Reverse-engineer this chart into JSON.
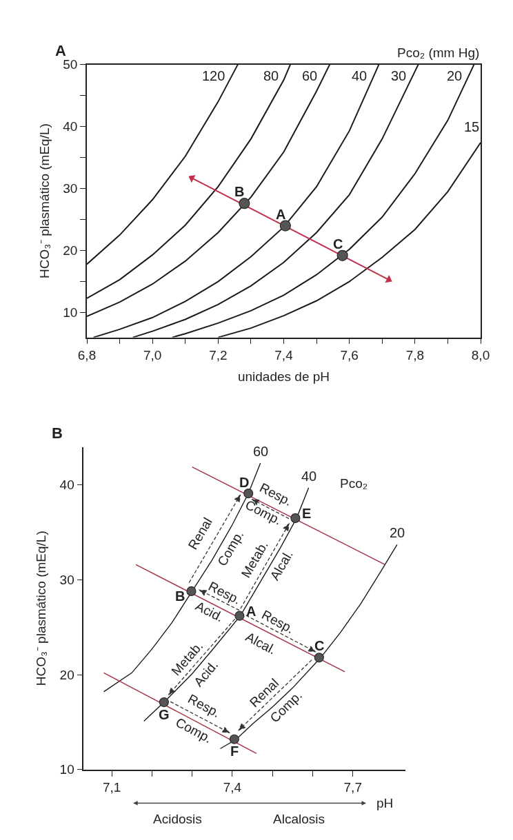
{
  "chart_data": [
    {
      "type": "line",
      "title": "A",
      "xlabel": "unidades de pH",
      "ylabel": "HCO₃⁻ plasmático (mEq/L)",
      "legend_title": "Pco₂ (mm Hg)",
      "xlim": [
        6.8,
        8.0
      ],
      "ylim": [
        6,
        50
      ],
      "xticks": [
        {
          "value": 6.8,
          "label": "6,8"
        },
        {
          "value": 6.9,
          "label": null
        },
        {
          "value": 7.0,
          "label": "7,0"
        },
        {
          "value": 7.1,
          "label": null
        },
        {
          "value": 7.2,
          "label": "7,2"
        },
        {
          "value": 7.3,
          "label": null
        },
        {
          "value": 7.4,
          "label": "7,4"
        },
        {
          "value": 7.5,
          "label": null
        },
        {
          "value": 7.6,
          "label": "7,6"
        },
        {
          "value": 7.7,
          "label": null
        },
        {
          "value": 7.8,
          "label": "7,8"
        },
        {
          "value": 7.9,
          "label": null
        },
        {
          "value": 8.0,
          "label": "8,0"
        }
      ],
      "yticks": [
        10,
        {
          "value": 15,
          "label": null
        },
        20,
        {
          "value": 25,
          "label": null
        },
        30,
        {
          "value": 35,
          "label": null
        },
        40,
        {
          "value": 45,
          "label": null
        },
        50
      ],
      "series": [
        {
          "name": "120",
          "color": "#1a1a1a",
          "x": [
            6.8,
            6.9,
            7.0,
            7.1,
            7.2,
            7.26
          ],
          "values": [
            17.8,
            22.5,
            28.2,
            35.2,
            44.0,
            50
          ]
        },
        {
          "name": "80",
          "color": "#1a1a1a",
          "x": [
            6.8,
            6.9,
            7.0,
            7.1,
            7.2,
            7.3,
            7.4,
            7.42
          ],
          "values": [
            12.3,
            15.3,
            19.3,
            24.1,
            30.3,
            38.0,
            47.5,
            50
          ]
        },
        {
          "name": "60",
          "color": "#1a1a1a",
          "x": [
            6.8,
            6.9,
            7.0,
            7.1,
            7.2,
            7.3,
            7.4,
            7.5,
            7.54
          ],
          "values": [
            9.4,
            11.7,
            14.6,
            18.3,
            22.9,
            28.6,
            35.9,
            45.7,
            50
          ]
        },
        {
          "name": "40",
          "color": "#1a1a1a",
          "x": [
            6.82,
            6.9,
            7.0,
            7.1,
            7.2,
            7.3,
            7.4,
            7.5,
            7.6,
            7.69
          ],
          "values": [
            6.0,
            7.3,
            9.2,
            11.8,
            15.0,
            19.0,
            23.8,
            30.3,
            39.3,
            50
          ]
        },
        {
          "name": "30",
          "color": "#1a1a1a",
          "x": [
            6.94,
            7.0,
            7.1,
            7.2,
            7.3,
            7.4,
            7.5,
            7.6,
            7.7,
            7.81
          ],
          "values": [
            6.0,
            7.0,
            8.9,
            11.3,
            14.3,
            18.1,
            22.9,
            29.0,
            38.0,
            50
          ]
        },
        {
          "name": "20",
          "color": "#1a1a1a",
          "x": [
            7.06,
            7.1,
            7.2,
            7.3,
            7.4,
            7.5,
            7.6,
            7.7,
            7.8,
            7.9,
            7.98
          ],
          "values": [
            6.0,
            6.6,
            8.3,
            10.3,
            12.8,
            16.1,
            20.2,
            25.4,
            32.4,
            41.0,
            50
          ]
        },
        {
          "name": "15",
          "color": "#1a1a1a",
          "x": [
            7.2,
            7.3,
            7.4,
            7.5,
            7.6,
            7.7,
            7.8,
            7.9,
            8.0
          ],
          "values": [
            6.0,
            7.5,
            9.5,
            11.9,
            15.0,
            18.9,
            23.4,
            29.5,
            37.4
          ]
        },
        {
          "type": "line",
          "color": "#c0304a",
          "marker": "triangle",
          "x": [
            7.12,
            7.72
          ],
          "values": [
            31.7,
            15.3
          ]
        },
        {
          "type": "scatter",
          "color": "#555555",
          "marker": "circle",
          "x": [
            7.28,
            7.405,
            7.579
          ],
          "values": [
            27.6,
            24.0,
            19.2
          ]
        }
      ],
      "annotations": [
        {
          "text": "B",
          "x": 7.28,
          "y": 27.6
        },
        {
          "text": "A",
          "x": 7.405,
          "y": 24.0
        },
        {
          "text": "C",
          "x": 7.579,
          "y": 19.2
        }
      ]
    },
    {
      "type": "line",
      "title": "B",
      "xlabel": "pH",
      "ylabel": "HCO₃⁻ plasmático (mEq/L)",
      "legend_title": "Pco₂",
      "xlim": [
        7.03,
        7.83
      ],
      "ylim": [
        10,
        44
      ],
      "xticks": [
        {
          "value": 7.1,
          "label": "7,1"
        },
        {
          "value": 7.2,
          "label": null
        },
        {
          "value": 7.3,
          "label": null
        },
        {
          "value": 7.4,
          "label": "7,4"
        },
        {
          "value": 7.5,
          "label": null
        },
        {
          "value": 7.6,
          "label": null
        },
        {
          "value": 7.7,
          "label": "7,7"
        }
      ],
      "yticks": [
        10,
        20,
        30,
        40
      ],
      "series": [
        {
          "name": "60",
          "color": "#1a1a1a",
          "x": [
            7.08,
            7.15,
            7.2,
            7.25,
            7.3,
            7.35,
            7.4,
            7.44,
            7.47
          ],
          "values": [
            18.2,
            20.2,
            22.7,
            25.5,
            28.8,
            32.1,
            35.8,
            39.1,
            42.3
          ]
        },
        {
          "name": "40",
          "color": "#1a1a1a",
          "x": [
            7.18,
            7.23,
            7.3,
            7.35,
            7.42,
            7.47,
            7.52,
            7.56,
            7.59
          ],
          "values": [
            15.1,
            17.1,
            20.1,
            22.6,
            26.2,
            29.8,
            33.4,
            36.5,
            39.7
          ]
        },
        {
          "name": "20",
          "color": "#1a1a1a",
          "x": [
            7.37,
            7.41,
            7.45,
            7.5,
            7.55,
            7.62,
            7.67,
            7.72,
            7.77,
            7.81
          ],
          "values": [
            12.2,
            13.2,
            14.8,
            16.6,
            18.6,
            21.8,
            24.5,
            27.5,
            30.9,
            33.7
          ]
        },
        {
          "type": "line",
          "color": "#a3303f",
          "x": [
            7.3,
            7.78
          ],
          "values": [
            41.9,
            31.6
          ]
        },
        {
          "type": "line",
          "color": "#a3303f",
          "x": [
            7.16,
            7.68
          ],
          "values": [
            31.6,
            20.3
          ]
        },
        {
          "type": "line",
          "color": "#a3303f",
          "x": [
            7.08,
            7.46
          ],
          "values": [
            20.2,
            11.7
          ]
        },
        {
          "type": "scatter",
          "color": "#555555",
          "marker": "circle",
          "x": [
            7.44,
            7.557,
            7.298,
            7.418,
            7.616,
            7.23,
            7.405
          ],
          "values": [
            39.1,
            36.5,
            28.8,
            26.2,
            21.8,
            17.1,
            13.2
          ]
        }
      ],
      "annotations": [
        {
          "text": "D",
          "x": 7.44,
          "y": 39.1
        },
        {
          "text": "E",
          "x": 7.557,
          "y": 36.5
        },
        {
          "text": "B",
          "x": 7.298,
          "y": 28.8
        },
        {
          "text": "A",
          "x": 7.418,
          "y": 26.2
        },
        {
          "text": "C",
          "x": 7.616,
          "y": 21.8
        },
        {
          "text": "G",
          "x": 7.23,
          "y": 17.1
        },
        {
          "text": "F",
          "x": 7.405,
          "y": 13.2
        },
        "Resp.",
        "Comp.",
        "Renal",
        "Comp.",
        "Metab.",
        "Alcal.",
        "Resp.",
        "Acid.",
        "Resp.",
        "Alcal.",
        "Metab.",
        "Acid.",
        "Renal",
        "Comp.",
        "Resp.",
        "Comp.",
        "Acidosis",
        "Alcalosis"
      ]
    }
  ]
}
